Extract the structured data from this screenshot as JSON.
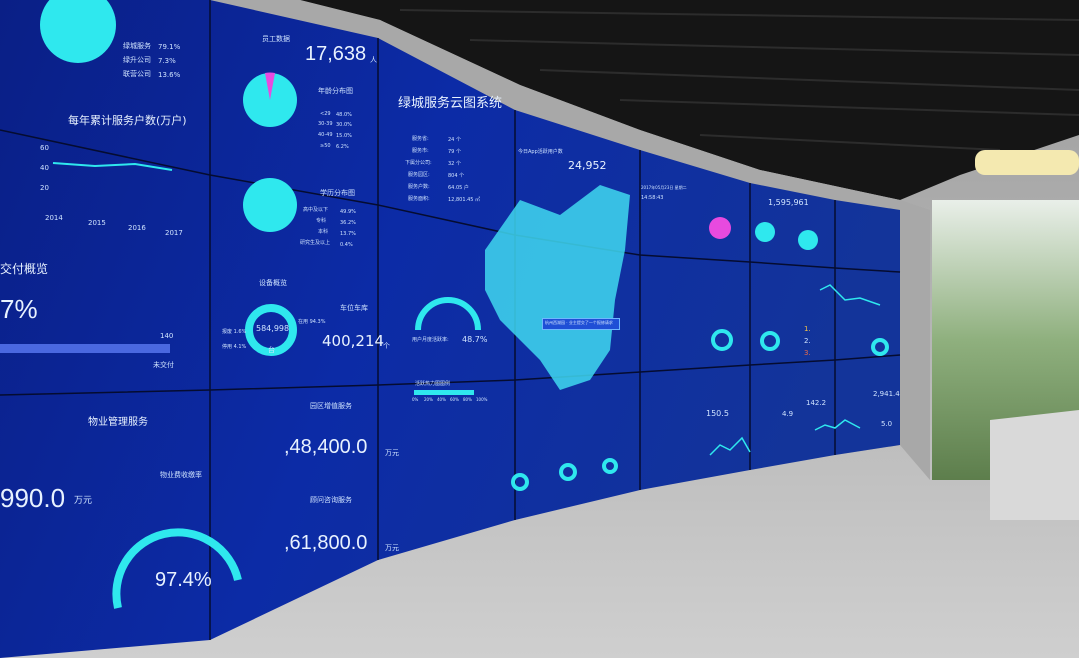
{
  "colors": {
    "screen": "#0b2494",
    "accent": "#2fe8ee",
    "magenta": "#e84adf",
    "ceiling": "#141414",
    "floor": "#b8b8b8"
  },
  "panel_left": {
    "legend": [
      {
        "label": "绿城服务",
        "value": "79.1%"
      },
      {
        "label": "绿升公司",
        "value": "7.3%"
      },
      {
        "label": "联营公司",
        "value": "13.6%"
      }
    ],
    "line_title": "每年累计服务户数(万户)",
    "line_yticks": [
      "60",
      "40",
      "20"
    ],
    "line_xticks": [
      "2014",
      "2015",
      "2016",
      "2017"
    ],
    "delivery_title": "交付概览",
    "delivery_pct": "7%",
    "bar_max": "140",
    "bar_label": "未交付",
    "pm_title": "物业管理服务",
    "pm_value": "990.0",
    "pm_unit": "万元",
    "gauge_label": "物业费收缴率",
    "gauge_value": "97.4%"
  },
  "panel_staff": {
    "title": "员工数据",
    "count": "17,638",
    "count_unit": "人",
    "age_title": "年龄分布图",
    "age_legend": [
      {
        "label": "<29",
        "value": "48.0%"
      },
      {
        "label": "30-39",
        "value": "30.0%"
      },
      {
        "label": "40-49",
        "value": "15.0%"
      },
      {
        "label": "≥50",
        "value": "6.2%"
      }
    ],
    "edu_title": "学历分布图",
    "edu_legend": [
      {
        "label": "高中及以下",
        "value": "49.9%"
      },
      {
        "label": "专科",
        "value": "36.2%"
      },
      {
        "label": "本科",
        "value": "13.7%"
      },
      {
        "label": "研究生及以上",
        "value": "0.4%"
      }
    ],
    "device_title": "设备概览",
    "device_count": "584,998",
    "device_unit": "台",
    "device_left": [
      "报废 1.6%",
      "停用 4.1%"
    ],
    "device_right": "在用 94.3%",
    "parking_title": "车位车库",
    "parking_value": "400,214",
    "parking_unit": "个",
    "garden_title": "园区增值服务",
    "garden_value": ",48,400.0",
    "garden_unit": "万元",
    "consult_title": "顾问咨询服务",
    "consult_value": ",61,800.0",
    "consult_unit": "万元"
  },
  "panel_center": {
    "title": "绿城服务云图系统",
    "app_label": "今日App活跃用户数",
    "app_value": "24,952",
    "stats": [
      {
        "label": "服务省:",
        "value": "24 个"
      },
      {
        "label": "服务市:",
        "value": "79 个"
      },
      {
        "label": "下属分公司:",
        "value": "32 个"
      },
      {
        "label": "服务园区:",
        "value": "804 个"
      },
      {
        "label": "服务户数:",
        "value": "64.05 户"
      },
      {
        "label": "服务面积:",
        "value": "12,801.45 ㎡"
      }
    ],
    "gauge_label": "用户月度活跃率:",
    "gauge_value": "48.7%",
    "heat_title": "活跃热力图图例",
    "heat_ticks": [
      "0%",
      "20%",
      "40%",
      "60%",
      "80%",
      "100%"
    ],
    "tooltip": "杭州西湖园 · 业主提交了一个报修请求"
  },
  "panel_right": {
    "datetime": [
      "2017年05月23日 星期二",
      "14:58:43"
    ],
    "total": "1,595,961",
    "values_bottom": [
      "150.5",
      "4.9",
      "142.2",
      "2,941.4",
      "5.0"
    ],
    "rank": [
      "1.",
      "2.",
      "3."
    ]
  }
}
